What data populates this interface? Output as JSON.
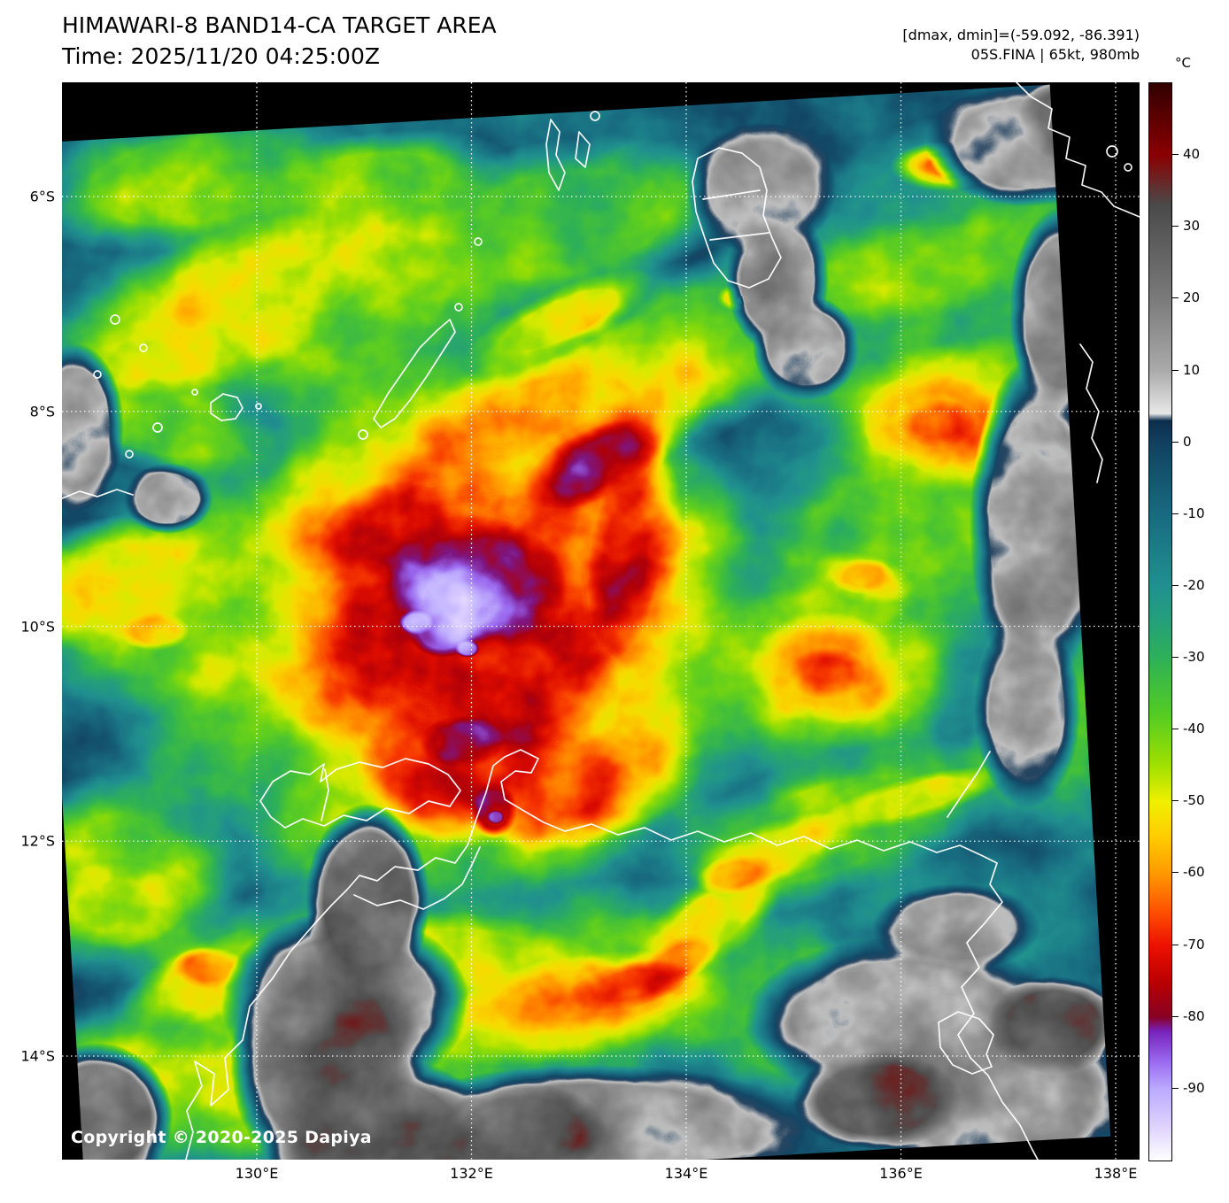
{
  "header": {
    "title": "HIMAWARI-8 BAND14-CA TARGET AREA",
    "time": "Time: 2025/11/20 04:25:00Z",
    "dmax_dmin": "[dmax, dmin]=(-59.092, -86.391)",
    "storm": "05S.FINA | 65kt, 980mb"
  },
  "axes": {
    "lat_ticks": [
      {
        "label": "6°S",
        "deg": 6
      },
      {
        "label": "8°S",
        "deg": 8
      },
      {
        "label": "10°S",
        "deg": 10
      },
      {
        "label": "12°S",
        "deg": 12
      },
      {
        "label": "14°S",
        "deg": 14
      }
    ],
    "lon_ticks": [
      {
        "label": "130°E",
        "deg": 130
      },
      {
        "label": "132°E",
        "deg": 132
      },
      {
        "label": "134°E",
        "deg": 134
      },
      {
        "label": "136°E",
        "deg": 136
      },
      {
        "label": "138°E",
        "deg": 138
      }
    ]
  },
  "colorbar": {
    "unit_label": "°C",
    "vmax": 50,
    "vmin": -100,
    "ticks": [
      {
        "label": "40",
        "value": 40
      },
      {
        "label": "30",
        "value": 30
      },
      {
        "label": "20",
        "value": 20
      },
      {
        "label": "10",
        "value": 10
      },
      {
        "label": "0",
        "value": 0
      },
      {
        "label": "-10",
        "value": -10
      },
      {
        "label": "-20",
        "value": -20
      },
      {
        "label": "-30",
        "value": -30
      },
      {
        "label": "-40",
        "value": -40
      },
      {
        "label": "-50",
        "value": -50
      },
      {
        "label": "-60",
        "value": -60
      },
      {
        "label": "-70",
        "value": -70
      },
      {
        "label": "-80",
        "value": -80
      },
      {
        "label": "-90",
        "value": -90
      }
    ],
    "colormap_stops": [
      {
        "v": 50,
        "color": "#300000"
      },
      {
        "v": 40,
        "color": "#8b0000"
      },
      {
        "v": 33,
        "color": "#4a4a4a"
      },
      {
        "v": 20,
        "color": "#7a7a7a"
      },
      {
        "v": 10,
        "color": "#aaaaaa"
      },
      {
        "v": 4,
        "color": "#e8e8e8"
      },
      {
        "v": 3,
        "color": "#0c2e4e"
      },
      {
        "v": 0,
        "color": "#114060"
      },
      {
        "v": -10,
        "color": "#186a80"
      },
      {
        "v": -20,
        "color": "#209090"
      },
      {
        "v": -25,
        "color": "#25a07a"
      },
      {
        "v": -30,
        "color": "#2db058"
      },
      {
        "v": -38,
        "color": "#55cc22"
      },
      {
        "v": -45,
        "color": "#a0e000"
      },
      {
        "v": -50,
        "color": "#f0f000"
      },
      {
        "v": -55,
        "color": "#ffcc00"
      },
      {
        "v": -60,
        "color": "#ff9900"
      },
      {
        "v": -65,
        "color": "#ff5500"
      },
      {
        "v": -70,
        "color": "#ee1100"
      },
      {
        "v": -75,
        "color": "#bb0000"
      },
      {
        "v": -80,
        "color": "#880022"
      },
      {
        "v": -82,
        "color": "#7722bb"
      },
      {
        "v": -86,
        "color": "#9966ee"
      },
      {
        "v": -90,
        "color": "#bbaaff"
      },
      {
        "v": -95,
        "color": "#ddd0ff"
      },
      {
        "v": -100,
        "color": "#ffffff"
      }
    ]
  },
  "overlay": {
    "copyright": "Copyright © 2020-2025 Dapiya"
  }
}
